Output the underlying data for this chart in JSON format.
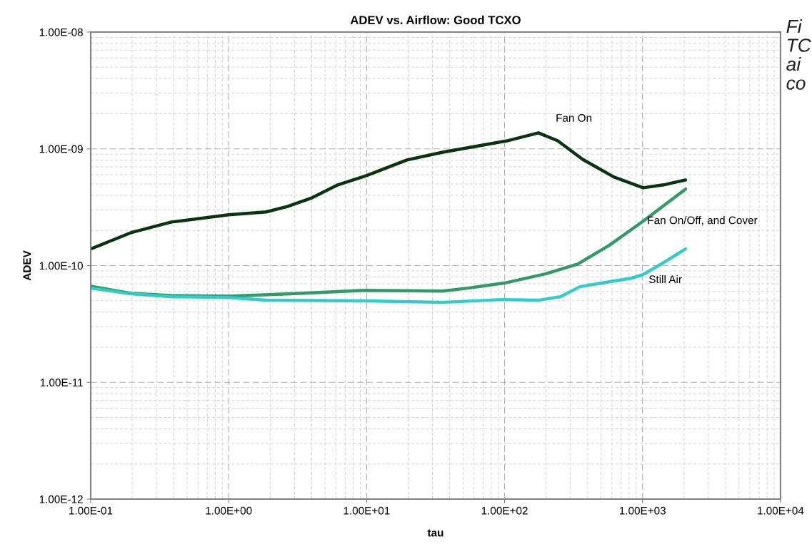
{
  "chart_data": {
    "type": "line",
    "title": "ADEV vs. Airflow: Good TCXO",
    "xlabel": "tau",
    "ylabel": "ADEV",
    "log": "xy",
    "grid": true,
    "marker": "none",
    "line_style": "solid",
    "xlim": [
      0.1,
      10000
    ],
    "ylim": [
      1e-12,
      1e-08
    ],
    "xticks": [
      {
        "value": 0.1,
        "label": "1.00E-01"
      },
      {
        "value": 1,
        "label": "1.00E+00"
      },
      {
        "value": 10,
        "label": "1.00E+01"
      },
      {
        "value": 100,
        "label": "1.00E+02"
      },
      {
        "value": 1000,
        "label": "1.00E+03"
      },
      {
        "value": 10000,
        "label": "1.00E+04"
      }
    ],
    "yticks": [
      {
        "value": 1e-12,
        "label": "1.00E-12"
      },
      {
        "value": 1e-11,
        "label": "1.00E-11"
      },
      {
        "value": 1e-10,
        "label": "1.00E-10"
      },
      {
        "value": 1e-09,
        "label": "1.00E-09"
      },
      {
        "value": 1e-08,
        "label": "1.00E-08"
      }
    ],
    "series": [
      {
        "name": "Fan On",
        "color": "#0a3310",
        "x": [
          0.1,
          0.195,
          0.385,
          1,
          1.87,
          2.69,
          4.03,
          6.18,
          9.95,
          19.6,
          35.6,
          104,
          176,
          243,
          368,
          622,
          1010,
          1420,
          2050
        ],
        "values": [
          1.39e-10,
          1.91e-10,
          2.36e-10,
          2.72e-10,
          2.88e-10,
          3.22e-10,
          3.81e-10,
          4.91e-10,
          5.89e-10,
          8.02e-10,
          9.35e-10,
          1.17e-09,
          1.37e-09,
          1.17e-09,
          8.13e-10,
          5.73e-10,
          4.64e-10,
          4.91e-10,
          5.41e-10
        ]
      },
      {
        "name": "Fan On/Off, and Cover",
        "color": "#339966",
        "x": [
          0.1,
          0.195,
          0.385,
          1,
          3.29,
          9.95,
          35.6,
          54.1,
          99.3,
          198,
          339,
          573,
          1010,
          2050
        ],
        "values": [
          6.65e-11,
          5.78e-11,
          5.54e-11,
          5.46e-11,
          5.78e-11,
          6.14e-11,
          6.05e-11,
          6.41e-11,
          7.08e-11,
          8.49e-11,
          1.03e-10,
          1.49e-10,
          2.4e-10,
          4.52e-10
        ]
      },
      {
        "name": "Still Air",
        "color": "#33cccc",
        "x": [
          0.1,
          0.195,
          0.385,
          1,
          1.87,
          9.95,
          35.6,
          95.7,
          176,
          254,
          351,
          533,
          826,
          1010,
          1420,
          2050
        ],
        "values": [
          6.41e-11,
          5.73e-11,
          5.41e-11,
          5.33e-11,
          5.05e-11,
          4.98e-11,
          4.84e-11,
          5.12e-11,
          5.05e-11,
          5.41e-11,
          6.59e-11,
          7.16e-11,
          7.79e-11,
          8.37e-11,
          1.06e-10,
          1.39e-10
        ]
      }
    ],
    "annotations": [
      "Fi\nTC\nai\nco"
    ]
  }
}
